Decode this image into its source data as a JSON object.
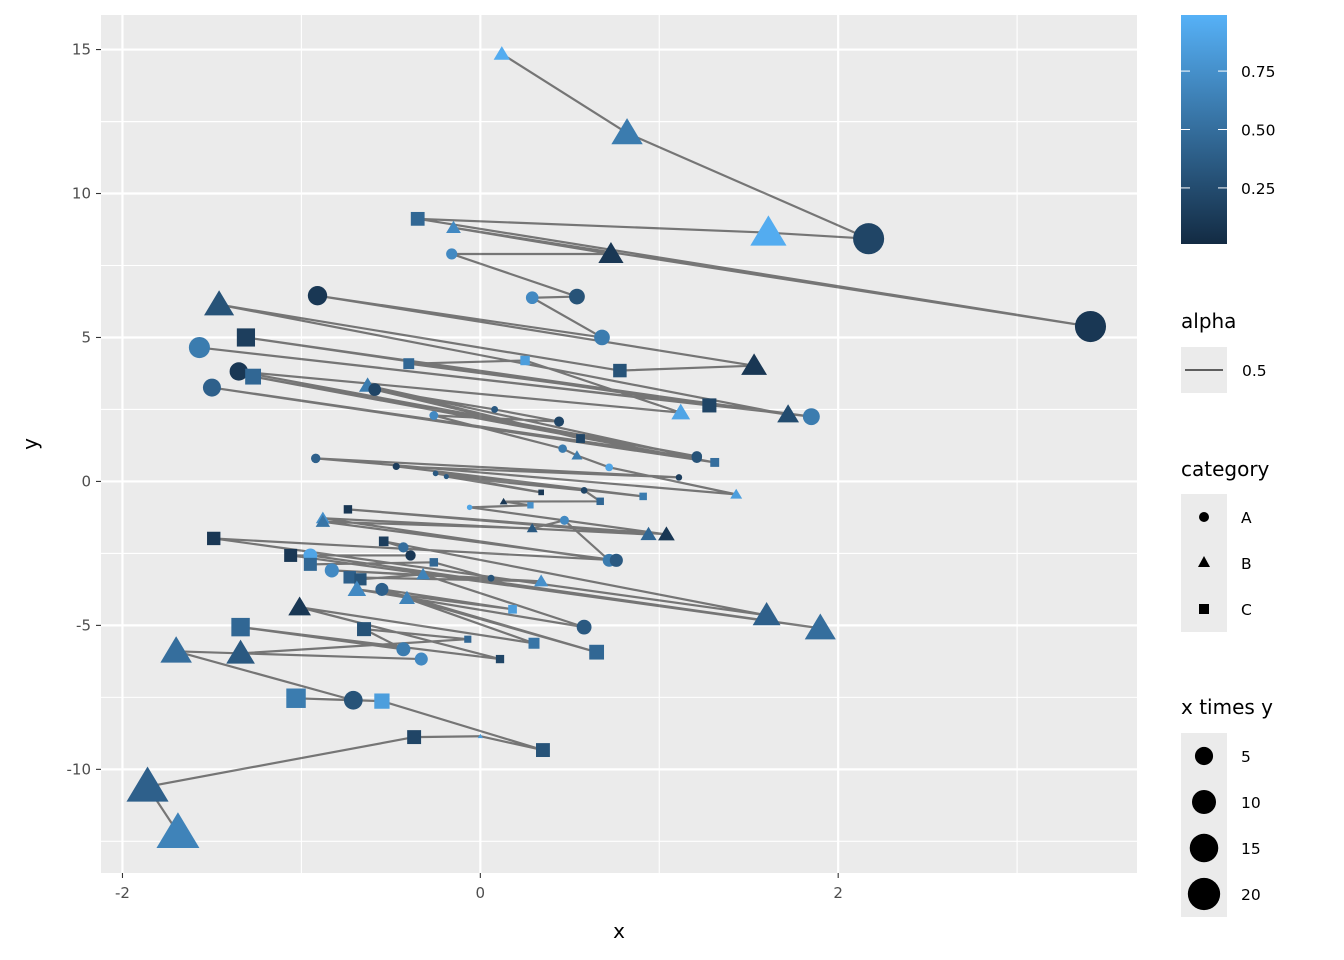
{
  "chart_data": {
    "type": "scatter",
    "xlabel": "x",
    "ylabel": "y",
    "xlim": [
      -2.12,
      3.67
    ],
    "ylim": [
      -13.6,
      16.2
    ],
    "x_ticks": [
      -2,
      0,
      2
    ],
    "y_ticks": [
      -10,
      -5,
      0,
      5,
      10,
      15
    ],
    "x_tick_labels": [
      "-2",
      "0",
      "2"
    ],
    "y_tick_labels": [
      "-10",
      "-5",
      "0",
      "5",
      "10",
      "15"
    ],
    "grid": true,
    "color_low": "#132B43",
    "color_high": "#56B1F7",
    "line_color": "#000000",
    "line_alpha": 0.5,
    "point_fields": [
      "x",
      "y",
      "category",
      "color_value"
    ],
    "points": [
      [
        0.12,
        14.85,
        "B",
        0.95
      ],
      [
        0.82,
        12.1,
        "B",
        0.6
      ],
      [
        2.17,
        8.43,
        "A",
        0.2
      ],
      [
        1.61,
        8.64,
        "B",
        0.95
      ],
      [
        -0.35,
        9.12,
        "C",
        0.45
      ],
      [
        3.41,
        5.38,
        "A",
        0.1
      ],
      [
        -0.15,
        8.81,
        "B",
        0.7
      ],
      [
        0.73,
        7.9,
        "B",
        0.1
      ],
      [
        -0.16,
        7.9,
        "A",
        0.7
      ],
      [
        0.54,
        6.42,
        "A",
        0.3
      ],
      [
        0.29,
        6.38,
        "A",
        0.7
      ],
      [
        0.68,
        5.0,
        "A",
        0.6
      ],
      [
        -0.91,
        6.45,
        "A",
        0.1
      ],
      [
        1.53,
        4.02,
        "B",
        0.1
      ],
      [
        0.78,
        3.85,
        "C",
        0.3
      ],
      [
        -1.46,
        6.14,
        "B",
        0.3
      ],
      [
        1.72,
        2.32,
        "B",
        0.25
      ],
      [
        -1.31,
        5.0,
        "C",
        0.15
      ],
      [
        1.28,
        2.64,
        "C",
        0.2
      ],
      [
        -1.57,
        4.65,
        "A",
        0.6
      ],
      [
        1.85,
        2.25,
        "A",
        0.6
      ],
      [
        -0.4,
        4.09,
        "C",
        0.45
      ],
      [
        0.25,
        4.2,
        "C",
        0.85
      ],
      [
        1.12,
        2.39,
        "B",
        0.9
      ],
      [
        -1.35,
        3.82,
        "A",
        0.1
      ],
      [
        1.21,
        0.87,
        "A",
        0.3
      ],
      [
        -1.27,
        3.64,
        "C",
        0.45
      ],
      [
        1.31,
        0.66,
        "C",
        0.5
      ],
      [
        -1.5,
        3.26,
        "A",
        0.4
      ],
      [
        1.21,
        0.82,
        "A",
        0.3
      ],
      [
        -0.63,
        3.33,
        "B",
        0.6
      ],
      [
        0.56,
        1.49,
        "C",
        0.2
      ],
      [
        -0.59,
        3.19,
        "A",
        0.2
      ],
      [
        0.08,
        2.5,
        "A",
        0.35
      ],
      [
        0.44,
        2.08,
        "A",
        0.2
      ],
      [
        -0.26,
        2.29,
        "A",
        0.7
      ],
      [
        0.46,
        1.14,
        "A",
        0.6
      ],
      [
        0.54,
        0.9,
        "B",
        0.6
      ],
      [
        0.72,
        0.49,
        "A",
        0.9
      ],
      [
        1.43,
        -0.45,
        "B",
        0.85
      ],
      [
        -0.92,
        0.8,
        "A",
        0.4
      ],
      [
        1.11,
        0.14,
        "A",
        0.15
      ],
      [
        -0.47,
        0.52,
        "A",
        0.15
      ],
      [
        0.91,
        -0.52,
        "C",
        0.6
      ],
      [
        -0.25,
        0.28,
        "A",
        0.35
      ],
      [
        0.34,
        -0.38,
        "C",
        0.1
      ],
      [
        -0.19,
        0.17,
        "A",
        0.35
      ],
      [
        0.58,
        -0.31,
        "A",
        0.2
      ],
      [
        0.67,
        -0.69,
        "C",
        0.45
      ],
      [
        0.13,
        -0.7,
        "B",
        0.1
      ],
      [
        0.28,
        -0.83,
        "C",
        0.75
      ],
      [
        -0.06,
        -0.9,
        "A",
        0.9
      ],
      [
        1.04,
        -1.84,
        "B",
        0.1
      ],
      [
        -0.74,
        -0.97,
        "C",
        0.1
      ],
      [
        0.94,
        -1.84,
        "B",
        0.45
      ],
      [
        -0.88,
        -1.28,
        "B",
        0.75
      ],
      [
        0.72,
        -2.74,
        "A",
        0.6
      ],
      [
        0.47,
        -1.35,
        "A",
        0.7
      ],
      [
        0.29,
        -1.63,
        "B",
        0.35
      ],
      [
        -0.88,
        -1.4,
        "B",
        0.55
      ],
      [
        0.76,
        -2.74,
        "A",
        0.35
      ],
      [
        -1.49,
        -1.98,
        "C",
        0.1
      ],
      [
        1.6,
        -4.65,
        "B",
        0.4
      ],
      [
        -0.54,
        -2.08,
        "C",
        0.15
      ],
      [
        -0.43,
        -2.29,
        "A",
        0.5
      ],
      [
        -0.39,
        -2.57,
        "A",
        0.1
      ],
      [
        -1.06,
        -2.57,
        "C",
        0.1
      ],
      [
        1.9,
        -5.1,
        "B",
        0.5
      ],
      [
        -0.95,
        -2.57,
        "A",
        0.9
      ],
      [
        -0.95,
        -2.88,
        "C",
        0.45
      ],
      [
        -0.26,
        -2.81,
        "C",
        0.45
      ],
      [
        0.06,
        -3.36,
        "A",
        0.3
      ],
      [
        -0.83,
        -3.09,
        "A",
        0.7
      ],
      [
        0.34,
        -3.47,
        "B",
        0.75
      ],
      [
        -0.73,
        -3.33,
        "C",
        0.4
      ],
      [
        -0.67,
        -3.4,
        "C",
        0.3
      ],
      [
        -0.32,
        -3.23,
        "B",
        0.65
      ],
      [
        0.58,
        -5.06,
        "A",
        0.35
      ],
      [
        -0.69,
        -3.75,
        "B",
        0.7
      ],
      [
        0.18,
        -4.44,
        "C",
        0.85
      ],
      [
        -0.55,
        -3.75,
        "A",
        0.4
      ],
      [
        0.65,
        -5.93,
        "C",
        0.45
      ],
      [
        -0.41,
        -4.06,
        "B",
        0.65
      ],
      [
        0.3,
        -5.62,
        "C",
        0.55
      ],
      [
        -1.01,
        -4.37,
        "B",
        0.1
      ],
      [
        0.11,
        -6.17,
        "C",
        0.2
      ],
      [
        -1.34,
        -5.06,
        "C",
        0.45
      ],
      [
        -0.43,
        -5.83,
        "A",
        0.6
      ],
      [
        -0.65,
        -5.13,
        "C",
        0.3
      ],
      [
        -0.07,
        -5.48,
        "C",
        0.45
      ],
      [
        -1.34,
        -5.97,
        "B",
        0.35
      ],
      [
        -0.33,
        -6.17,
        "A",
        0.7
      ],
      [
        -1.7,
        -5.9,
        "B",
        0.5
      ],
      [
        -0.71,
        -7.6,
        "A",
        0.3
      ],
      [
        -1.03,
        -7.53,
        "C",
        0.6
      ],
      [
        -0.55,
        -7.63,
        "C",
        0.85
      ],
      [
        0.35,
        -9.33,
        "C",
        0.3
      ],
      [
        0.0,
        -8.85,
        "B",
        0.85
      ],
      [
        -0.37,
        -8.88,
        "C",
        0.2
      ],
      [
        -1.86,
        -10.6,
        "B",
        0.4
      ],
      [
        -1.69,
        -12.2,
        "B",
        0.65
      ]
    ],
    "legends": {
      "color": {
        "title": "",
        "ticks": [
          0.25,
          0.5,
          0.75
        ],
        "labels": [
          "0.25",
          "0.50",
          "0.75"
        ],
        "range": [
          0.01,
          0.99
        ]
      },
      "alpha": {
        "title": "alpha",
        "labels": [
          "0.5"
        ]
      },
      "category": {
        "title": "category",
        "labels": [
          "A",
          "B",
          "C"
        ]
      },
      "size": {
        "title": "x times y",
        "values": [
          5,
          10,
          15,
          20
        ],
        "labels": [
          "5",
          "10",
          "15",
          "20"
        ]
      }
    }
  }
}
